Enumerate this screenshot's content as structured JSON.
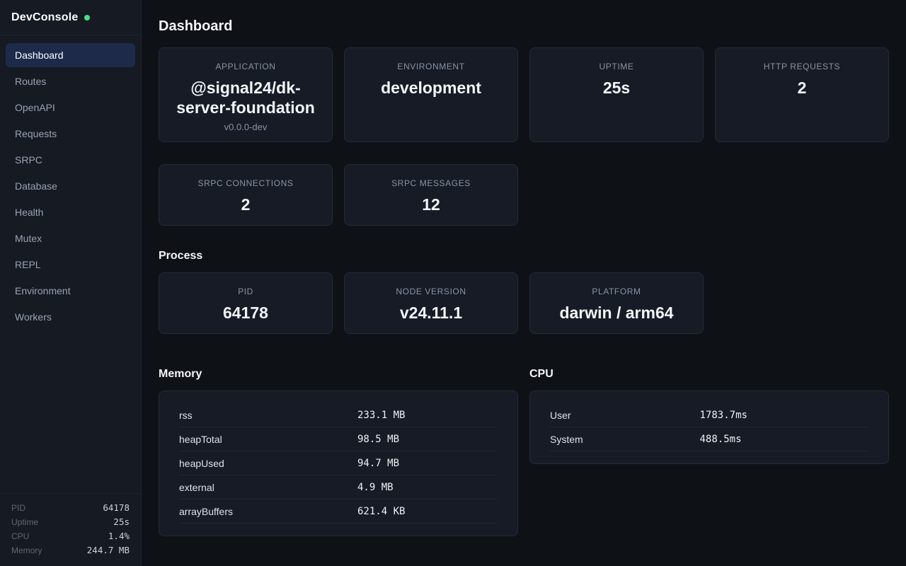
{
  "app": {
    "title": "DevConsole",
    "status": "online"
  },
  "colors": {
    "background": "#0e1116",
    "sidebar_background": "#151a23",
    "card_background": "#161b25",
    "card_border": "#242b38",
    "active_item_background": "#1d2a49",
    "status_green": "#4ade80",
    "text_primary": "#f2f5f9",
    "text_muted": "#8b95a5"
  },
  "sidebar": {
    "items": [
      {
        "label": "Dashboard",
        "active": true
      },
      {
        "label": "Routes",
        "active": false
      },
      {
        "label": "OpenAPI",
        "active": false
      },
      {
        "label": "Requests",
        "active": false
      },
      {
        "label": "SRPC",
        "active": false
      },
      {
        "label": "Database",
        "active": false
      },
      {
        "label": "Health",
        "active": false
      },
      {
        "label": "Mutex",
        "active": false
      },
      {
        "label": "REPL",
        "active": false
      },
      {
        "label": "Environment",
        "active": false
      },
      {
        "label": "Workers",
        "active": false
      }
    ],
    "footer": [
      {
        "label": "PID",
        "value": "64178"
      },
      {
        "label": "Uptime",
        "value": "25s"
      },
      {
        "label": "CPU",
        "value": "1.4%"
      },
      {
        "label": "Memory",
        "value": "244.7 MB"
      }
    ]
  },
  "main": {
    "title": "Dashboard",
    "stats_row1": [
      {
        "label": "APPLICATION",
        "value": "@signal24/dk-server-foundation",
        "sub": "v0.0.0-dev"
      },
      {
        "label": "ENVIRONMENT",
        "value": "development"
      },
      {
        "label": "UPTIME",
        "value": "25s"
      },
      {
        "label": "HTTP REQUESTS",
        "value": "2"
      }
    ],
    "stats_row2": [
      {
        "label": "SRPC CONNECTIONS",
        "value": "2"
      },
      {
        "label": "SRPC MESSAGES",
        "value": "12"
      }
    ],
    "process": {
      "title": "Process",
      "cards": [
        {
          "label": "PID",
          "value": "64178"
        },
        {
          "label": "NODE VERSION",
          "value": "v24.11.1"
        },
        {
          "label": "PLATFORM",
          "value": "darwin / arm64"
        }
      ]
    },
    "memory": {
      "title": "Memory",
      "rows": [
        {
          "label": "rss",
          "value": "233.1 MB"
        },
        {
          "label": "heapTotal",
          "value": "98.5 MB"
        },
        {
          "label": "heapUsed",
          "value": "94.7 MB"
        },
        {
          "label": "external",
          "value": "4.9 MB"
        },
        {
          "label": "arrayBuffers",
          "value": "621.4 KB"
        }
      ]
    },
    "cpu": {
      "title": "CPU",
      "rows": [
        {
          "label": "User",
          "value": "1783.7ms"
        },
        {
          "label": "System",
          "value": "488.5ms"
        }
      ]
    }
  }
}
